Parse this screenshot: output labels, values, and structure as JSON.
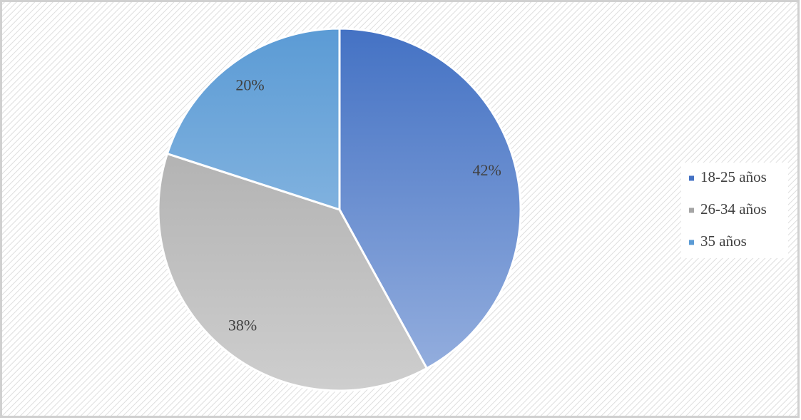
{
  "chart_data": {
    "type": "pie",
    "categories": [
      "18-25 años",
      "26-34 años",
      "35 años"
    ],
    "values": [
      42,
      38,
      20
    ],
    "value_labels": [
      "42%",
      "38%",
      "20%"
    ],
    "colors": [
      "#4472c4",
      "#a5a5a5",
      "#5b9bd5"
    ],
    "legend": "right"
  }
}
